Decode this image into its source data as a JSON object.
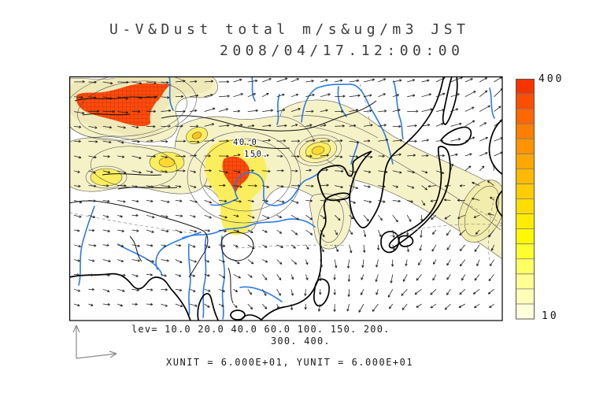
{
  "title": {
    "line1": "U-V&Dust total m/s&ug/m3 JST",
    "line2": "2008/04/17.12:00:00"
  },
  "legend": {
    "lev_line1": "lev= 10.0 20.0 40.0 60.0 100. 150. 200.",
    "lev_line2": "300. 400.",
    "units": "XUNIT = 6.000E+01, YUNIT = 6.000E+01"
  },
  "colorbar": {
    "top_label": "400",
    "bottom_label": "10",
    "colors": [
      "#f63400",
      "#fa4f00",
      "#ff6700",
      "#ff7e00",
      "#ff9300",
      "#ffa700",
      "#ffba00",
      "#ffcc00",
      "#ffdd00",
      "#ffec00",
      "#fff900",
      "#ffff2e",
      "#ffff64",
      "#ffff92",
      "#ffffba",
      "#ffffd9"
    ]
  },
  "chart_data": {
    "type": "heatmap",
    "title": "U-V&Dust total m/s&ug/m3 JST",
    "datetime": "2008/04/17.12:00:00",
    "contour_levels": [
      10.0,
      20.0,
      40.0,
      60.0,
      100.0,
      150.0,
      200.0,
      300.0,
      400.0
    ],
    "colorbar_range": [
      10,
      400
    ],
    "xunit": "6.000E+01",
    "yunit": "6.000E+01",
    "contour_labels_on_map": [
      "40.0",
      "150."
    ],
    "legend_position": "right",
    "overlays": [
      "wind-vectors",
      "coastlines",
      "rivers",
      "dust-concentration-shading"
    ]
  }
}
